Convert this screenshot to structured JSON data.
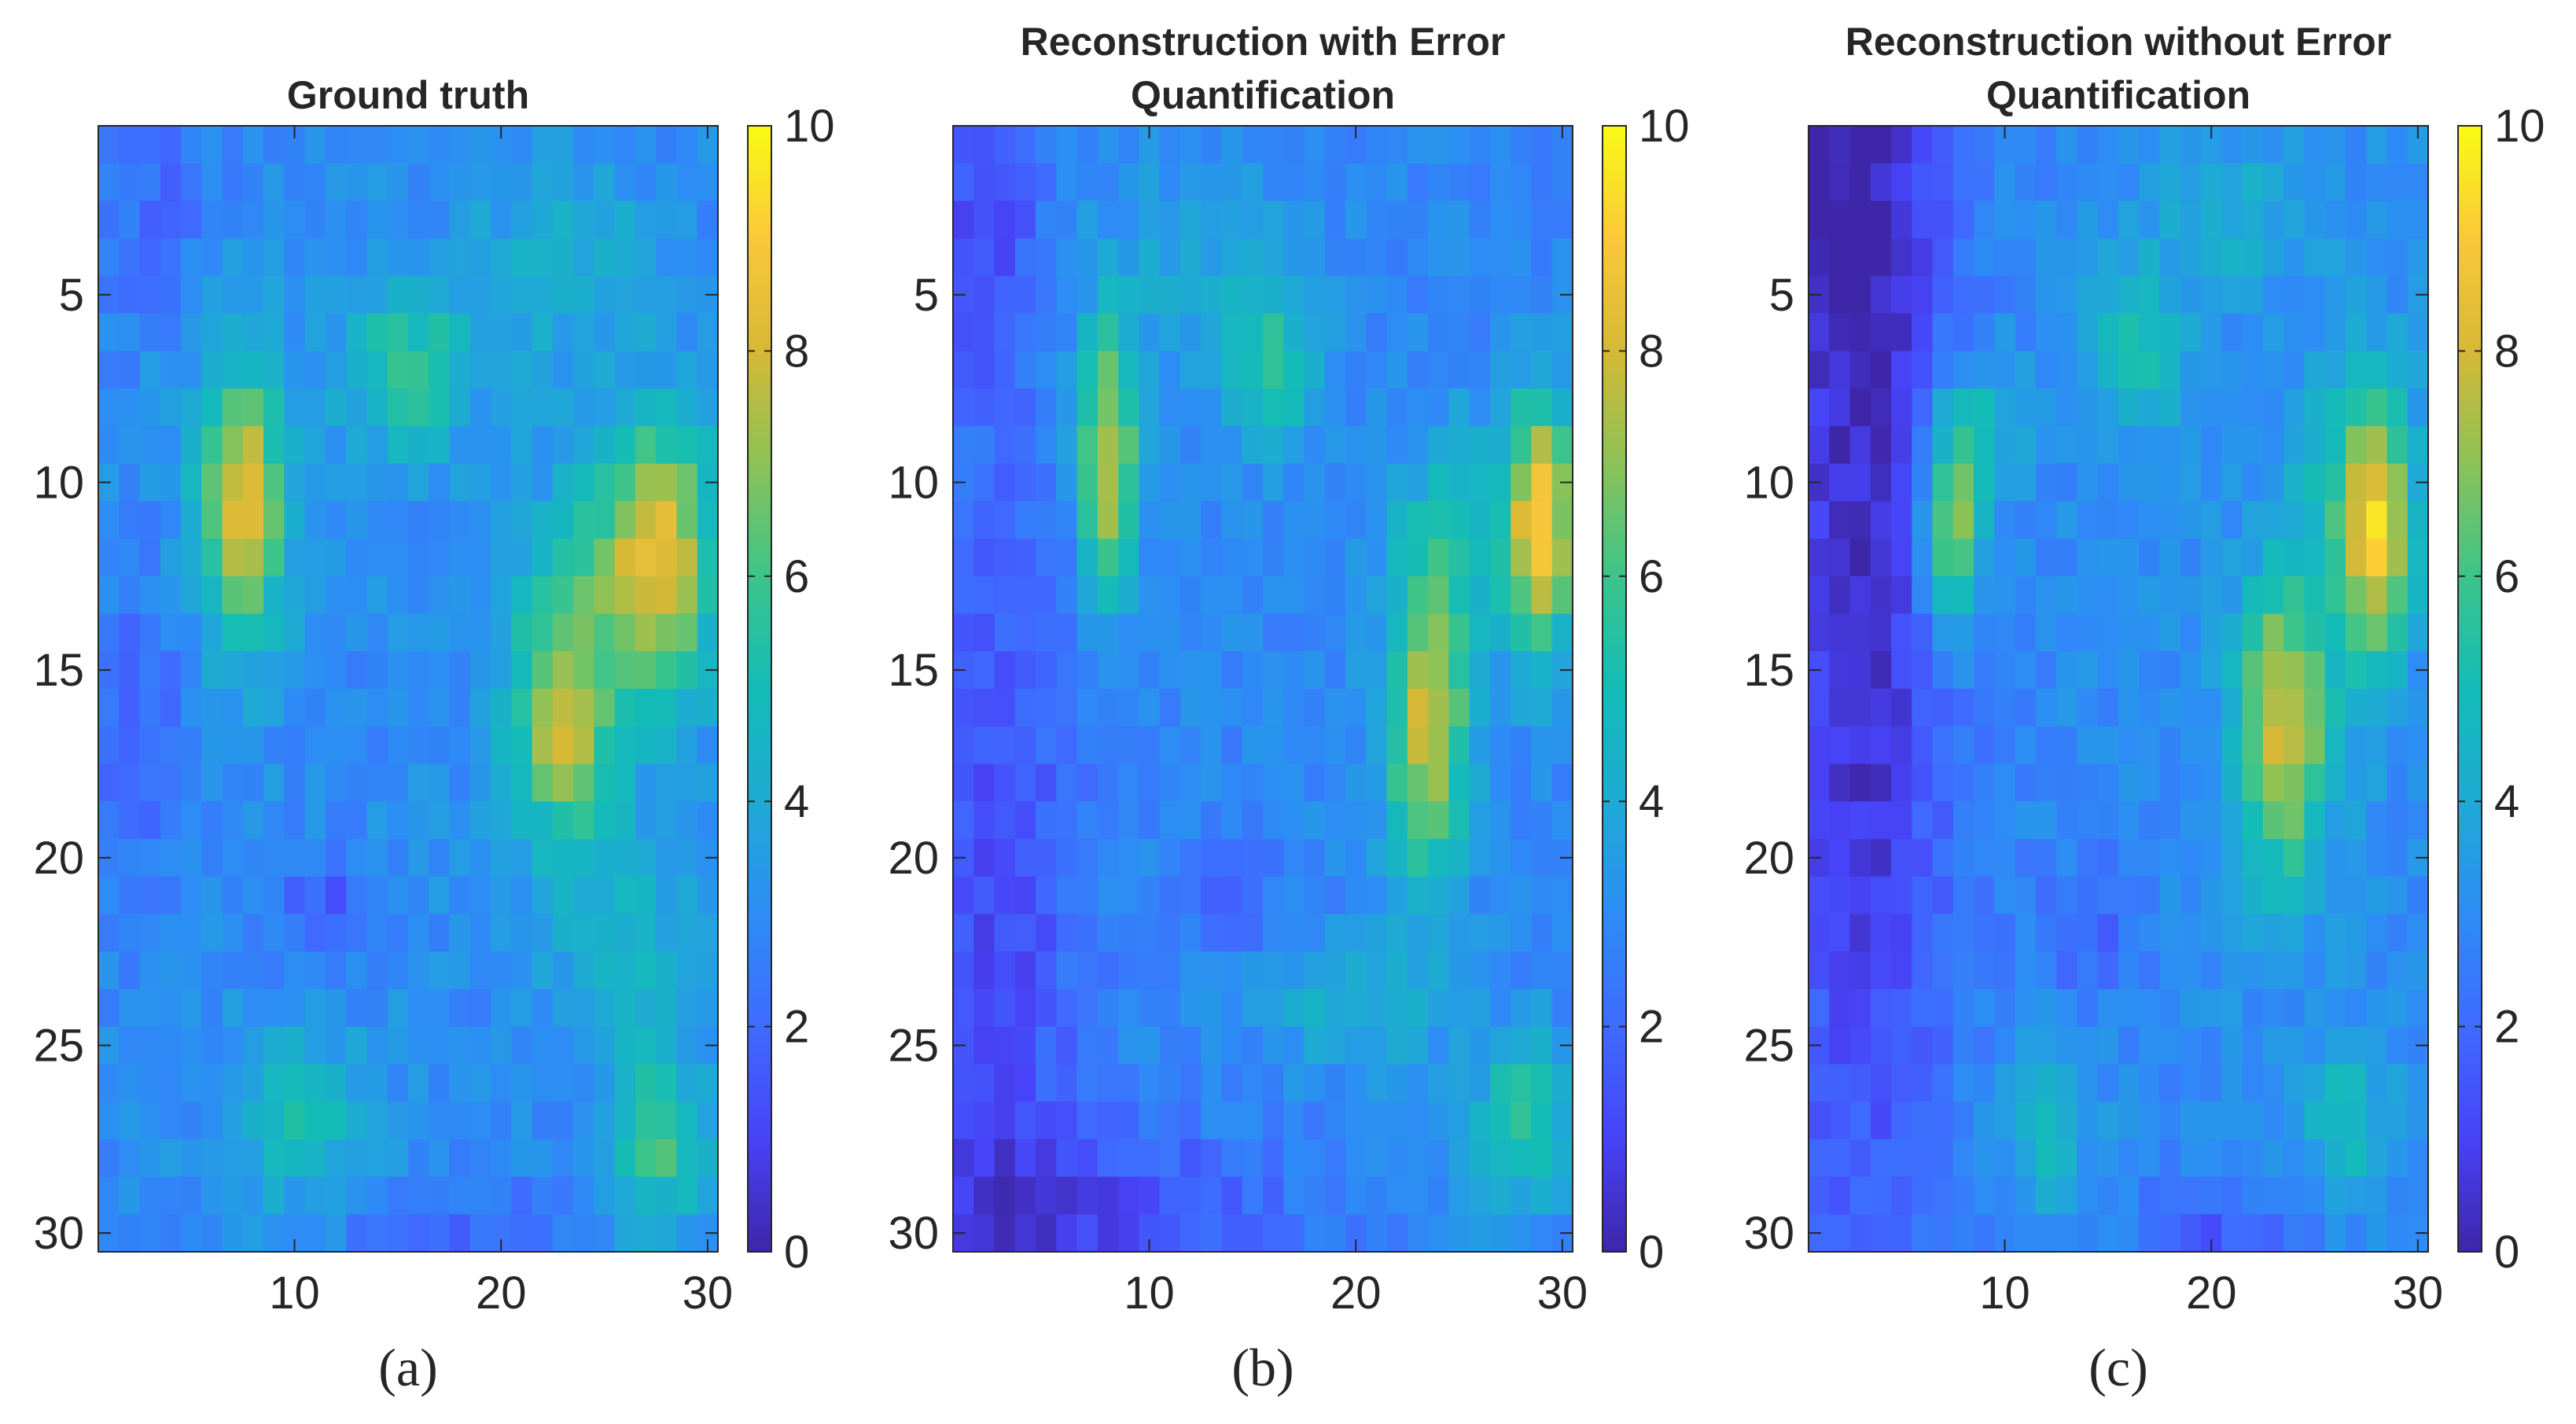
{
  "chart_data": [
    {
      "type": "heatmap",
      "panel": "a",
      "title_lines": [
        "Ground truth"
      ],
      "caption": "(a)",
      "xlim": [
        0.5,
        30.5
      ],
      "ylim": [
        0.5,
        30.5
      ],
      "xticks": [
        10,
        20,
        30
      ],
      "yticks": [
        5,
        10,
        15,
        20,
        25,
        30
      ],
      "colorbar": {
        "ticks": [
          0,
          2,
          4,
          6,
          8,
          10
        ],
        "range": [
          0,
          10
        ],
        "colormap": "parula"
      },
      "grid_size": [
        30,
        30
      ],
      "layout": {
        "background": 3.0,
        "tilt": -0.002,
        "noise": 0.55,
        "seed": 11,
        "hotspots": []
      },
      "blobs": [
        {
          "cx": 7.5,
          "cy": 10.5,
          "sx": 1.5,
          "sy": 2.6,
          "amp": 5.2
        },
        {
          "cx": 15.5,
          "cy": 7.0,
          "sx": 2.2,
          "sy": 1.6,
          "amp": 2.7
        },
        {
          "cx": 23.0,
          "cy": 16.5,
          "sx": 1.8,
          "sy": 2.2,
          "amp": 4.4
        },
        {
          "cx": 27.8,
          "cy": 12.0,
          "sx": 1.8,
          "sy": 2.6,
          "amp": 5.0
        },
        {
          "cx": 24.5,
          "cy": 12.5,
          "sx": 2.6,
          "sy": 2.2,
          "amp": 1.8
        },
        {
          "cx": 27.5,
          "cy": 27.5,
          "sx": 1.6,
          "sy": 1.6,
          "amp": 3.2
        },
        {
          "cx": 26.0,
          "cy": 22.0,
          "sx": 2.4,
          "sy": 2.0,
          "amp": 1.6
        },
        {
          "cx": 10.5,
          "cy": 27.0,
          "sx": 2.2,
          "sy": 1.6,
          "amp": 2.0
        },
        {
          "cx": 23.0,
          "cy": 4.0,
          "sx": 3.0,
          "sy": 2.0,
          "amp": 1.3
        },
        {
          "cx": 11.5,
          "cy": 21.5,
          "sx": 1.6,
          "sy": 1.0,
          "amp": -1.6
        },
        {
          "cx": 2.5,
          "cy": 17.0,
          "sx": 2.0,
          "sy": 3.0,
          "amp": -1.2
        },
        {
          "cx": 3.0,
          "cy": 2.5,
          "sx": 2.0,
          "sy": 2.0,
          "amp": -1.0
        },
        {
          "cx": 18.0,
          "cy": 30.0,
          "sx": 4.0,
          "sy": 1.0,
          "amp": -1.0
        }
      ]
    },
    {
      "type": "heatmap",
      "panel": "b",
      "title_lines": [
        "Reconstruction with Error",
        "Quantification"
      ],
      "caption": "(b)",
      "xlim": [
        0.5,
        30.5
      ],
      "ylim": [
        0.5,
        30.5
      ],
      "xticks": [
        10,
        20,
        30
      ],
      "yticks": [
        5,
        10,
        15,
        20,
        25,
        30
      ],
      "colorbar": {
        "ticks": [
          0,
          2,
          4,
          6,
          8,
          10
        ],
        "range": [
          0,
          10
        ],
        "colormap": "parula"
      },
      "grid_size": [
        30,
        30
      ],
      "layout": {
        "background": 2.9,
        "tilt": -0.004,
        "noise": 0.5,
        "seed": 23,
        "hotspots": []
      },
      "blobs": [
        {
          "cx": 8.0,
          "cy": 9.5,
          "sx": 1.0,
          "sy": 2.6,
          "amp": 5.0
        },
        {
          "cx": 16.0,
          "cy": 7.0,
          "sx": 1.6,
          "sy": 1.6,
          "amp": 2.4
        },
        {
          "cx": 23.5,
          "cy": 16.5,
          "sx": 1.4,
          "sy": 3.0,
          "amp": 5.0
        },
        {
          "cx": 29.0,
          "cy": 11.0,
          "sx": 1.2,
          "sy": 2.4,
          "amp": 5.6
        },
        {
          "cx": 25.5,
          "cy": 11.5,
          "sx": 2.6,
          "sy": 2.2,
          "amp": 1.6
        },
        {
          "cx": 28.0,
          "cy": 27.0,
          "sx": 1.6,
          "sy": 1.6,
          "amp": 2.8
        },
        {
          "cx": 20.0,
          "cy": 24.0,
          "sx": 3.0,
          "sy": 1.2,
          "amp": 1.4
        },
        {
          "cx": 12.0,
          "cy": 4.5,
          "sx": 3.0,
          "sy": 2.0,
          "amp": 1.0
        },
        {
          "cx": 2.5,
          "cy": 22.0,
          "sx": 3.0,
          "sy": 9.0,
          "amp": -1.8
        },
        {
          "cx": 8.0,
          "cy": 29.5,
          "sx": 6.0,
          "sy": 1.5,
          "amp": -1.8
        },
        {
          "cx": 2.0,
          "cy": 3.0,
          "sx": 2.0,
          "sy": 3.0,
          "amp": -1.6
        },
        {
          "cx": 14.0,
          "cy": 21.0,
          "sx": 1.5,
          "sy": 1.2,
          "amp": -1.2
        }
      ]
    },
    {
      "type": "heatmap",
      "panel": "c",
      "title_lines": [
        "Reconstruction without Error",
        "Quantification"
      ],
      "caption": "(c)",
      "xlim": [
        0.5,
        30.5
      ],
      "ylim": [
        0.5,
        30.5
      ],
      "xticks": [
        10,
        20,
        30
      ],
      "yticks": [
        5,
        10,
        15,
        20,
        25,
        30
      ],
      "colorbar": {
        "ticks": [
          0,
          2,
          4,
          6,
          8,
          10
        ],
        "range": [
          0,
          10
        ],
        "colormap": "parula"
      },
      "grid_size": [
        30,
        30
      ],
      "layout": {
        "background": 3.0,
        "tilt": 0.0,
        "noise": 0.5,
        "seed": 37,
        "hotspots": []
      },
      "blobs": [
        {
          "cx": 7.5,
          "cy": 11.5,
          "sx": 1.0,
          "sy": 1.8,
          "amp": 4.6
        },
        {
          "cx": 8.5,
          "cy": 8.5,
          "sx": 1.6,
          "sy": 1.4,
          "amp": 2.0
        },
        {
          "cx": 16.5,
          "cy": 6.5,
          "sx": 1.6,
          "sy": 1.6,
          "amp": 2.2
        },
        {
          "cx": 23.5,
          "cy": 16.5,
          "sx": 1.6,
          "sy": 2.8,
          "amp": 5.2
        },
        {
          "cx": 28.0,
          "cy": 11.5,
          "sx": 1.2,
          "sy": 2.6,
          "amp": 5.0
        },
        {
          "cx": 26.5,
          "cy": 10.0,
          "sx": 1.8,
          "sy": 2.2,
          "amp": 1.8
        },
        {
          "cx": 26.5,
          "cy": 27.0,
          "sx": 1.4,
          "sy": 1.4,
          "amp": 2.0
        },
        {
          "cx": 12.0,
          "cy": 27.0,
          "sx": 1.4,
          "sy": 1.6,
          "amp": 1.8
        },
        {
          "cx": 21.0,
          "cy": 3.0,
          "sx": 2.6,
          "sy": 1.6,
          "amp": 1.2
        },
        {
          "cx": 3.0,
          "cy": 14.0,
          "sx": 3.2,
          "sy": 12.0,
          "amp": -2.6
        },
        {
          "cx": 1.0,
          "cy": 2.0,
          "sx": 4.0,
          "sy": 4.0,
          "amp": -1.6
        },
        {
          "cx": 14.0,
          "cy": 22.0,
          "sx": 2.0,
          "sy": 1.4,
          "amp": -1.2
        },
        {
          "cx": 20.0,
          "cy": 30.0,
          "sx": 3.0,
          "sy": 1.2,
          "amp": -1.4
        }
      ]
    }
  ]
}
